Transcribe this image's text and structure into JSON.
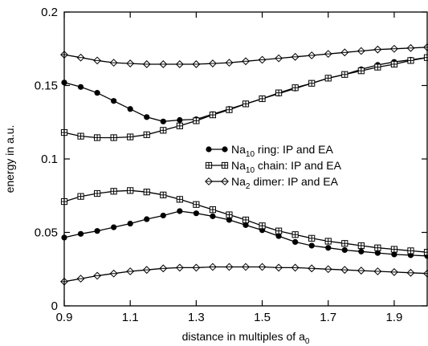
{
  "chart_data": {
    "type": "line",
    "title": "",
    "xlabel": {
      "text": "distance in multiples of a",
      "sub": "0"
    },
    "ylabel": "energy in a.u.",
    "xlim": [
      0.9,
      2.0
    ],
    "ylim": [
      0,
      0.2
    ],
    "xticks": [
      "0.9",
      "1.1",
      "1.3",
      "1.5",
      "1.7",
      "1.9"
    ],
    "xtick_values": [
      0.9,
      1.1,
      1.3,
      1.5,
      1.7,
      1.9
    ],
    "yticks": [
      "0",
      "0.05",
      "0.1",
      "0.15",
      "0.2"
    ],
    "ytick_values": [
      0,
      0.05,
      0.1,
      0.15,
      0.2
    ],
    "grid": false,
    "legend_position": "center-right",
    "legend": [
      {
        "series": "ring",
        "prefix": "Na",
        "sub": "10",
        "suffix": " ring: IP and EA"
      },
      {
        "series": "chain",
        "prefix": "Na",
        "sub": "10",
        "suffix": " chain: IP and EA"
      },
      {
        "series": "dimer",
        "prefix": "Na",
        "sub": "2",
        "suffix": " dimer: IP and EA"
      }
    ],
    "series": [
      {
        "key": "ring",
        "marker": "filled-circle",
        "branch": "IP",
        "x": [
          0.9,
          0.95,
          1.0,
          1.05,
          1.1,
          1.15,
          1.2,
          1.25,
          1.3,
          1.35,
          1.4,
          1.45,
          1.5,
          1.55,
          1.6,
          1.65,
          1.7,
          1.75,
          1.8,
          1.85,
          1.9,
          1.95,
          2.0
        ],
        "y": [
          0.152,
          0.149,
          0.145,
          0.1395,
          0.134,
          0.1285,
          0.1255,
          0.1265,
          0.127,
          0.1305,
          0.134,
          0.1375,
          0.141,
          0.1445,
          0.148,
          0.1515,
          0.155,
          0.1575,
          0.161,
          0.164,
          0.166,
          0.1675,
          0.169
        ]
      },
      {
        "key": "ring",
        "marker": "filled-circle",
        "branch": "EA",
        "x": [
          0.9,
          0.95,
          1.0,
          1.05,
          1.1,
          1.15,
          1.2,
          1.25,
          1.3,
          1.35,
          1.4,
          1.45,
          1.5,
          1.55,
          1.6,
          1.65,
          1.7,
          1.75,
          1.8,
          1.85,
          1.9,
          1.95,
          2.0
        ],
        "y": [
          0.0465,
          0.049,
          0.051,
          0.0535,
          0.056,
          0.059,
          0.0615,
          0.0645,
          0.063,
          0.061,
          0.0585,
          0.055,
          0.0515,
          0.0475,
          0.0435,
          0.041,
          0.0395,
          0.038,
          0.037,
          0.036,
          0.035,
          0.0345,
          0.034
        ]
      },
      {
        "key": "chain",
        "marker": "square-plus",
        "branch": "IP",
        "x": [
          0.9,
          0.95,
          1.0,
          1.05,
          1.1,
          1.15,
          1.2,
          1.25,
          1.3,
          1.35,
          1.4,
          1.45,
          1.5,
          1.55,
          1.6,
          1.65,
          1.7,
          1.75,
          1.8,
          1.85,
          1.9,
          1.95,
          2.0
        ],
        "y": [
          0.118,
          0.1155,
          0.1145,
          0.1145,
          0.115,
          0.1165,
          0.1195,
          0.1225,
          0.126,
          0.13,
          0.1335,
          0.1375,
          0.141,
          0.145,
          0.1485,
          0.1515,
          0.155,
          0.1575,
          0.16,
          0.1625,
          0.1645,
          0.167,
          0.169
        ]
      },
      {
        "key": "chain",
        "marker": "square-plus",
        "branch": "EA",
        "x": [
          0.9,
          0.95,
          1.0,
          1.05,
          1.1,
          1.15,
          1.2,
          1.25,
          1.3,
          1.35,
          1.4,
          1.45,
          1.5,
          1.55,
          1.6,
          1.65,
          1.7,
          1.75,
          1.8,
          1.85,
          1.9,
          1.95,
          2.0
        ],
        "y": [
          0.071,
          0.0745,
          0.0765,
          0.078,
          0.0785,
          0.0775,
          0.0755,
          0.0725,
          0.069,
          0.0655,
          0.062,
          0.0585,
          0.0545,
          0.051,
          0.0485,
          0.046,
          0.044,
          0.0425,
          0.041,
          0.0395,
          0.0385,
          0.0375,
          0.0365
        ]
      },
      {
        "key": "dimer",
        "marker": "diamond",
        "branch": "IP",
        "x": [
          0.9,
          0.95,
          1.0,
          1.05,
          1.1,
          1.15,
          1.2,
          1.25,
          1.3,
          1.35,
          1.4,
          1.45,
          1.5,
          1.55,
          1.6,
          1.65,
          1.7,
          1.75,
          1.8,
          1.85,
          1.9,
          1.95,
          2.0
        ],
        "y": [
          0.171,
          0.169,
          0.167,
          0.1655,
          0.165,
          0.1645,
          0.1645,
          0.1645,
          0.1645,
          0.165,
          0.1655,
          0.1665,
          0.1675,
          0.1685,
          0.1695,
          0.1705,
          0.1715,
          0.1725,
          0.1735,
          0.1745,
          0.175,
          0.1755,
          0.176
        ]
      },
      {
        "key": "dimer",
        "marker": "diamond",
        "branch": "EA",
        "x": [
          0.9,
          0.95,
          1.0,
          1.05,
          1.1,
          1.15,
          1.2,
          1.25,
          1.3,
          1.35,
          1.4,
          1.45,
          1.5,
          1.55,
          1.6,
          1.65,
          1.7,
          1.75,
          1.8,
          1.85,
          1.9,
          1.95,
          2.0
        ],
        "y": [
          0.0165,
          0.0185,
          0.0205,
          0.022,
          0.0235,
          0.0245,
          0.0255,
          0.026,
          0.026,
          0.0265,
          0.0265,
          0.0265,
          0.0265,
          0.026,
          0.026,
          0.0255,
          0.025,
          0.0245,
          0.024,
          0.0235,
          0.023,
          0.0225,
          0.022
        ]
      }
    ]
  }
}
